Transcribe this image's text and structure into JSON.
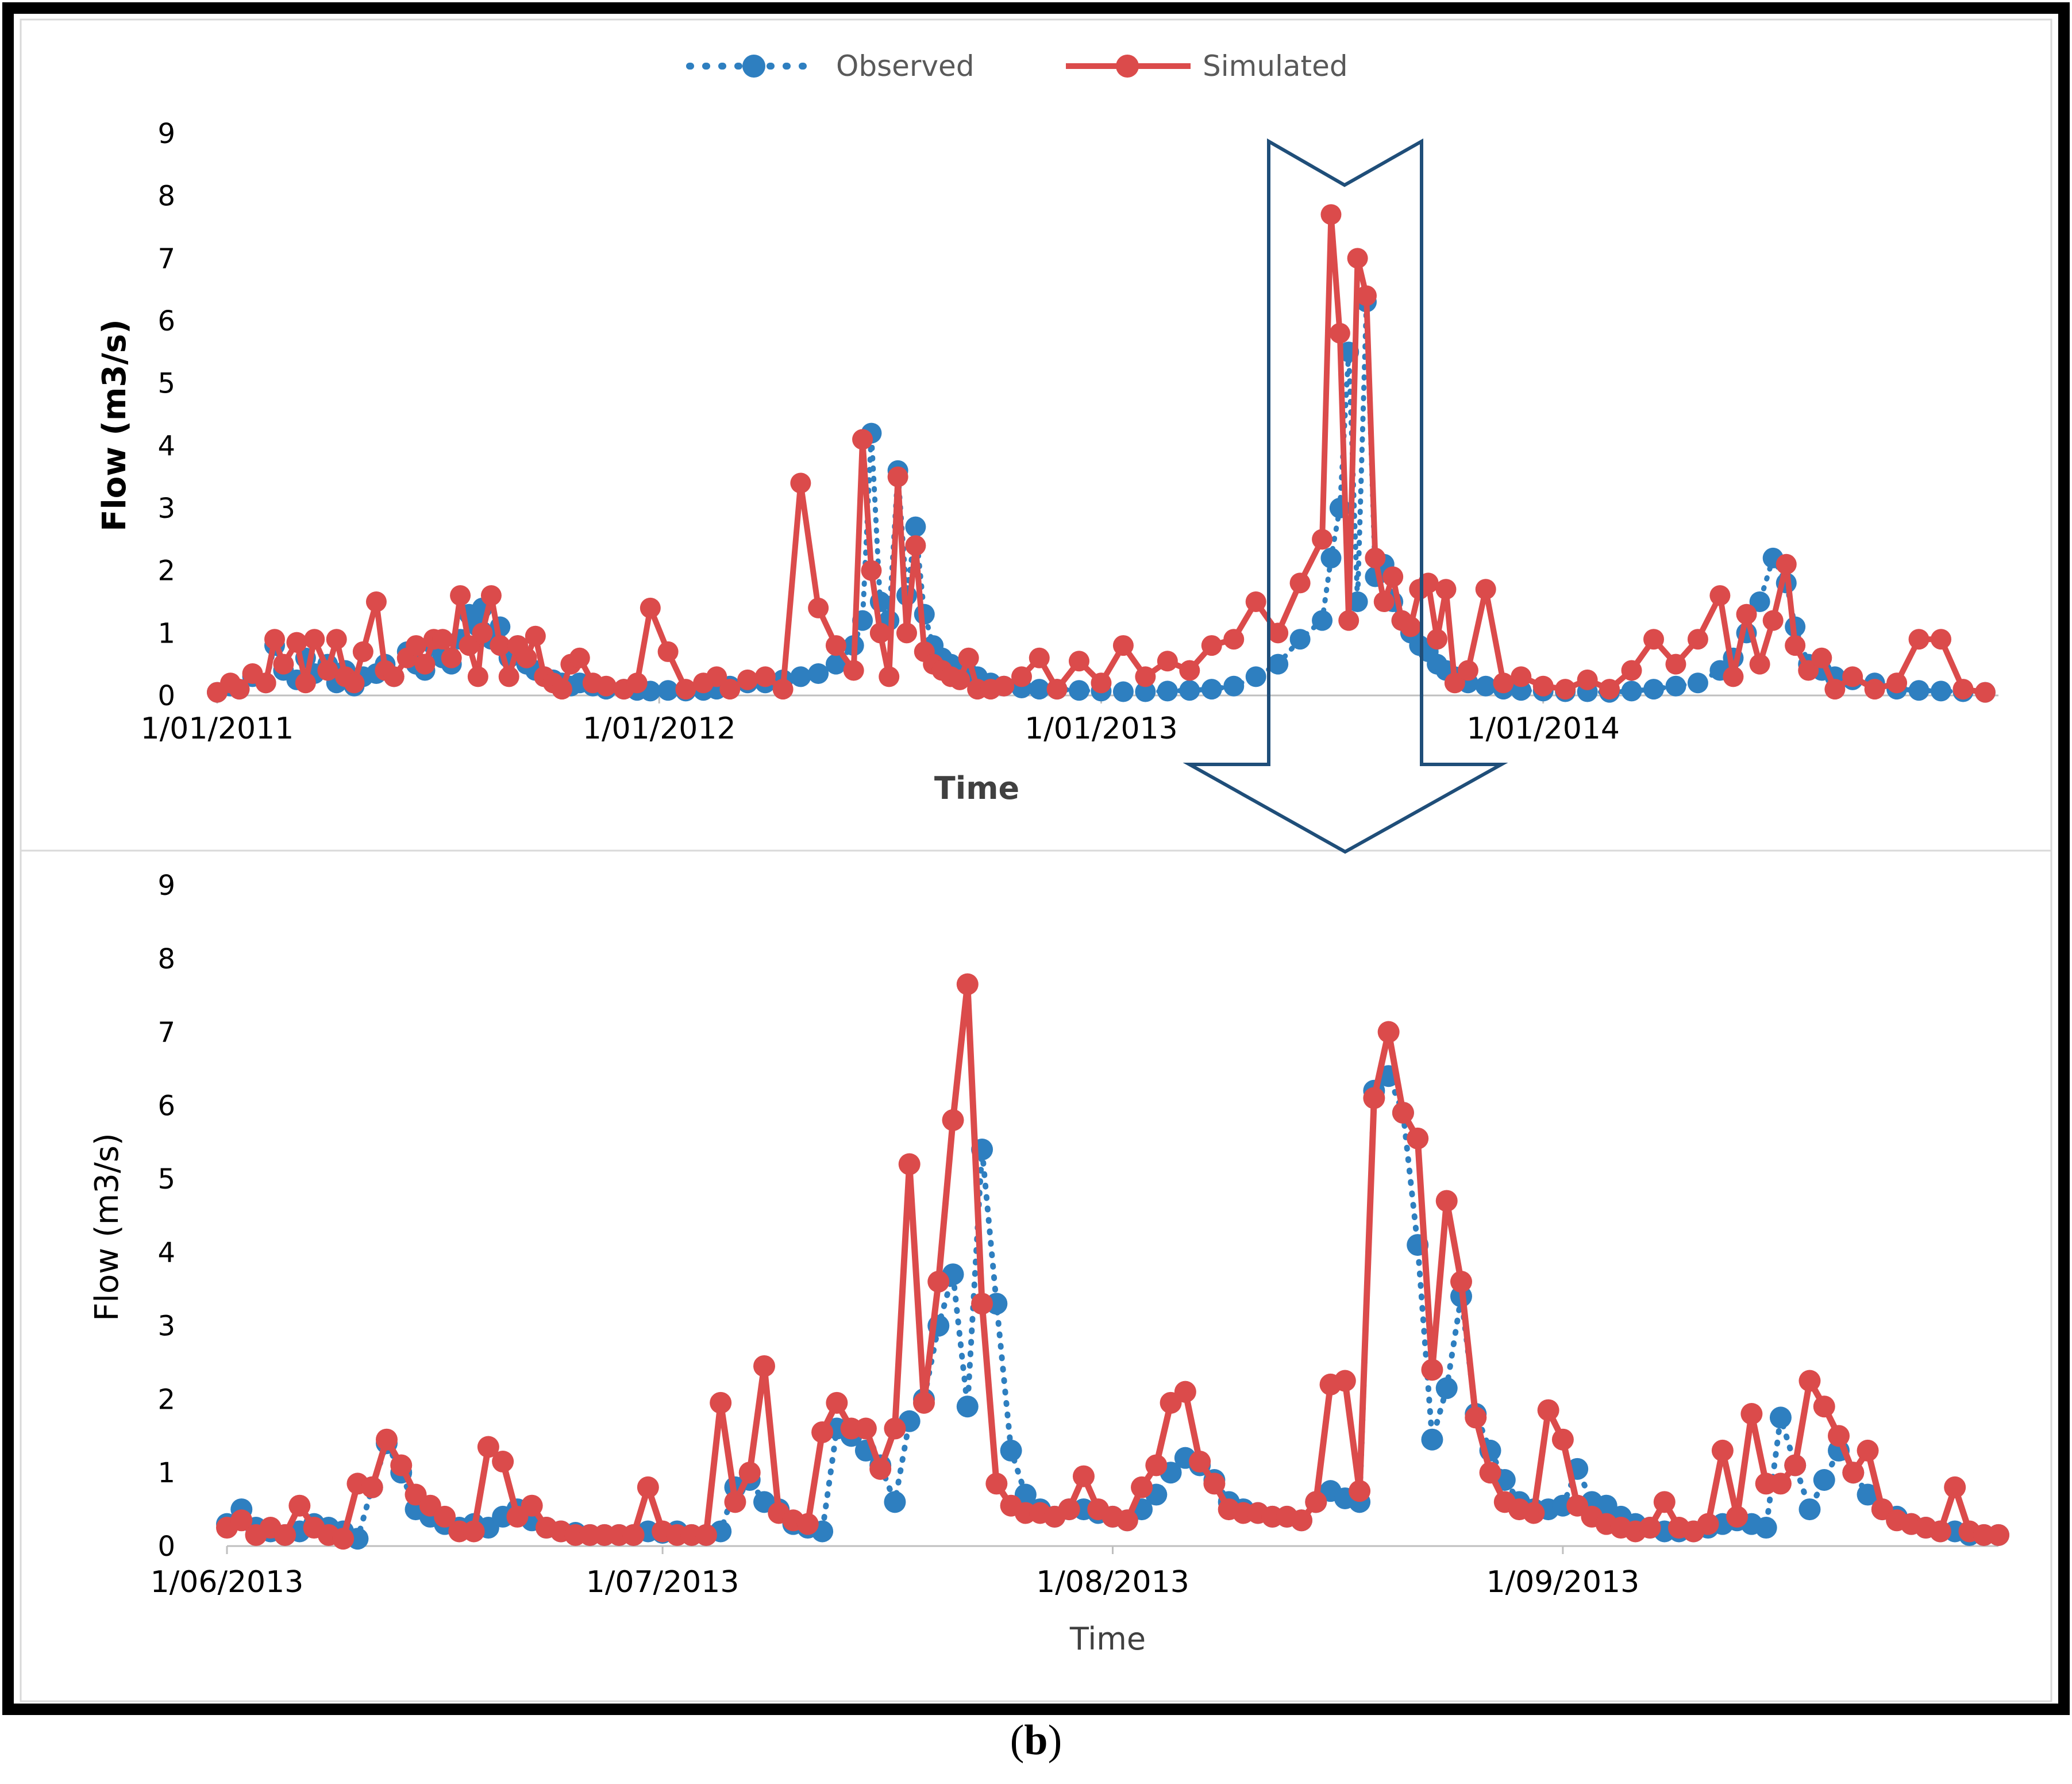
{
  "caption": {
    "open": "(",
    "letter": "b",
    "close": ")"
  },
  "colors": {
    "observed": "#2E7FC0",
    "simulated": "#DB4B4B",
    "arrow": "#1F4E79",
    "frame": "#000000",
    "axis": "#BFBFBF",
    "panelBorder": "#D9D9D9"
  },
  "chart_data": [
    {
      "type": "line",
      "title": "",
      "xlabel": "Time",
      "ylabel": "Flow (m3/s)",
      "ylim": [
        0,
        9
      ],
      "yticks": [
        "0",
        "1",
        "2",
        "3",
        "4",
        "5",
        "6",
        "7",
        "8",
        "9"
      ],
      "xlim": [
        0,
        4.03
      ],
      "xticks": [
        {
          "x": 0,
          "label": "1/01/2011"
        },
        {
          "x": 1,
          "label": "1/01/2012"
        },
        {
          "x": 2,
          "label": "1/01/2013"
        },
        {
          "x": 3,
          "label": "1/01/2014"
        }
      ],
      "legend": [
        {
          "name": "Observed",
          "style": "dotted-markers"
        },
        {
          "name": "Simulated",
          "style": "solid-markers"
        }
      ],
      "legend_position": "top",
      "x_unit": "years since 1/01/2011",
      "series": [
        {
          "name": "Observed",
          "x": [
            0.0,
            0.03,
            0.05,
            0.08,
            0.11,
            0.13,
            0.15,
            0.18,
            0.2,
            0.22,
            0.25,
            0.27,
            0.29,
            0.31,
            0.33,
            0.36,
            0.38,
            0.4,
            0.43,
            0.45,
            0.47,
            0.49,
            0.51,
            0.53,
            0.55,
            0.57,
            0.59,
            0.6,
            0.62,
            0.64,
            0.66,
            0.68,
            0.7,
            0.72,
            0.74,
            0.76,
            0.78,
            0.8,
            0.82,
            0.85,
            0.88,
            0.92,
            0.95,
            0.98,
            1.02,
            1.06,
            1.1,
            1.13,
            1.16,
            1.2,
            1.24,
            1.28,
            1.32,
            1.36,
            1.4,
            1.44,
            1.46,
            1.48,
            1.5,
            1.52,
            1.54,
            1.56,
            1.58,
            1.6,
            1.62,
            1.64,
            1.66,
            1.68,
            1.7,
            1.72,
            1.75,
            1.78,
            1.82,
            1.86,
            1.9,
            1.95,
            2.0,
            2.05,
            2.1,
            2.15,
            2.2,
            2.25,
            2.3,
            2.35,
            2.4,
            2.45,
            2.5,
            2.52,
            2.54,
            2.56,
            2.58,
            2.6,
            2.62,
            2.64,
            2.66,
            2.68,
            2.7,
            2.72,
            2.74,
            2.76,
            2.78,
            2.8,
            2.83,
            2.87,
            2.91,
            2.95,
            3.0,
            3.05,
            3.1,
            3.15,
            3.2,
            3.25,
            3.3,
            3.35,
            3.4,
            3.43,
            3.46,
            3.49,
            3.52,
            3.55,
            3.57,
            3.6,
            3.63,
            3.66,
            3.7,
            3.75,
            3.8,
            3.85,
            3.9,
            3.95,
            4.0
          ],
          "values": [
            0.05,
            0.15,
            0.1,
            0.3,
            0.2,
            0.8,
            0.4,
            0.25,
            0.6,
            0.35,
            0.5,
            0.2,
            0.4,
            0.15,
            0.3,
            0.35,
            0.5,
            0.3,
            0.7,
            0.5,
            0.4,
            0.8,
            0.6,
            0.5,
            0.9,
            1.3,
            1.1,
            1.4,
            0.9,
            1.1,
            0.6,
            0.8,
            0.5,
            0.4,
            0.3,
            0.25,
            0.2,
            0.15,
            0.2,
            0.15,
            0.1,
            0.1,
            0.08,
            0.07,
            0.08,
            0.07,
            0.08,
            0.1,
            0.15,
            0.2,
            0.2,
            0.25,
            0.3,
            0.35,
            0.5,
            0.8,
            1.2,
            4.2,
            1.5,
            1.2,
            3.6,
            1.6,
            2.7,
            1.3,
            0.8,
            0.6,
            0.5,
            0.4,
            0.35,
            0.3,
            0.2,
            0.15,
            0.12,
            0.1,
            0.1,
            0.08,
            0.07,
            0.06,
            0.06,
            0.07,
            0.08,
            0.1,
            0.15,
            0.3,
            0.5,
            0.9,
            1.2,
            2.2,
            3.0,
            5.5,
            1.5,
            6.3,
            1.9,
            2.1,
            1.5,
            1.2,
            1.0,
            0.8,
            0.7,
            0.5,
            0.4,
            0.3,
            0.2,
            0.15,
            0.1,
            0.08,
            0.07,
            0.06,
            0.06,
            0.05,
            0.07,
            0.1,
            0.15,
            0.2,
            0.4,
            0.6,
            1.0,
            1.5,
            2.2,
            1.8,
            1.1,
            0.5,
            0.4,
            0.3,
            0.25,
            0.2,
            0.1,
            0.08,
            0.07,
            0.06,
            0.05
          ]
        },
        {
          "name": "Simulated",
          "x": [
            0.0,
            0.03,
            0.05,
            0.08,
            0.11,
            0.13,
            0.15,
            0.18,
            0.2,
            0.22,
            0.25,
            0.27,
            0.29,
            0.31,
            0.33,
            0.36,
            0.38,
            0.4,
            0.43,
            0.45,
            0.47,
            0.49,
            0.51,
            0.53,
            0.55,
            0.57,
            0.59,
            0.6,
            0.62,
            0.64,
            0.66,
            0.68,
            0.7,
            0.72,
            0.74,
            0.76,
            0.78,
            0.8,
            0.82,
            0.85,
            0.88,
            0.92,
            0.95,
            0.98,
            1.02,
            1.06,
            1.1,
            1.13,
            1.16,
            1.2,
            1.24,
            1.28,
            1.32,
            1.36,
            1.4,
            1.44,
            1.46,
            1.48,
            1.5,
            1.52,
            1.54,
            1.56,
            1.58,
            1.6,
            1.62,
            1.64,
            1.66,
            1.68,
            1.7,
            1.72,
            1.75,
            1.78,
            1.82,
            1.86,
            1.9,
            1.95,
            2.0,
            2.05,
            2.1,
            2.15,
            2.2,
            2.25,
            2.3,
            2.35,
            2.4,
            2.45,
            2.5,
            2.52,
            2.54,
            2.56,
            2.58,
            2.6,
            2.62,
            2.64,
            2.66,
            2.68,
            2.7,
            2.72,
            2.74,
            2.76,
            2.78,
            2.8,
            2.83,
            2.87,
            2.91,
            2.95,
            3.0,
            3.05,
            3.1,
            3.15,
            3.2,
            3.25,
            3.3,
            3.35,
            3.4,
            3.43,
            3.46,
            3.49,
            3.52,
            3.55,
            3.57,
            3.6,
            3.63,
            3.66,
            3.7,
            3.75,
            3.8,
            3.85,
            3.9,
            3.95,
            4.0
          ],
          "values": [
            0.05,
            0.2,
            0.1,
            0.35,
            0.2,
            0.9,
            0.5,
            0.85,
            0.2,
            0.9,
            0.4,
            0.9,
            0.3,
            0.2,
            0.7,
            1.5,
            0.4,
            0.3,
            0.6,
            0.8,
            0.5,
            0.9,
            0.9,
            0.6,
            1.6,
            0.8,
            0.3,
            1.0,
            1.6,
            0.8,
            0.3,
            0.8,
            0.6,
            0.95,
            0.3,
            0.2,
            0.1,
            0.5,
            0.6,
            0.2,
            0.15,
            0.1,
            0.2,
            1.4,
            0.7,
            0.1,
            0.2,
            0.3,
            0.1,
            0.25,
            0.3,
            0.1,
            3.4,
            1.4,
            0.8,
            0.4,
            4.1,
            2.0,
            1.0,
            0.3,
            3.5,
            1.0,
            2.4,
            0.7,
            0.5,
            0.4,
            0.3,
            0.25,
            0.6,
            0.1,
            0.1,
            0.15,
            0.3,
            0.6,
            0.1,
            0.55,
            0.2,
            0.8,
            0.3,
            0.55,
            0.4,
            0.8,
            0.9,
            1.5,
            1.0,
            1.8,
            2.5,
            7.7,
            5.8,
            1.2,
            7.0,
            6.4,
            2.2,
            1.5,
            1.9,
            1.2,
            1.1,
            1.7,
            1.8,
            0.9,
            1.7,
            0.2,
            0.4,
            1.7,
            0.2,
            0.3,
            0.15,
            0.1,
            0.25,
            0.1,
            0.4,
            0.9,
            0.5,
            0.9,
            1.6,
            0.3,
            1.3,
            0.5,
            1.2,
            2.1,
            0.8,
            0.4,
            0.6,
            0.1,
            0.3,
            0.1,
            0.2,
            0.9,
            0.9,
            0.1,
            0.05
          ]
        }
      ]
    },
    {
      "type": "line",
      "title": "",
      "xlabel": "Time",
      "ylabel": "Flow (m3/s)",
      "ylim": [
        0,
        9
      ],
      "yticks": [
        "0",
        "1",
        "2",
        "3",
        "4",
        "5",
        "6",
        "7",
        "8",
        "9"
      ],
      "xlim": [
        0,
        122
      ],
      "xticks": [
        {
          "x": 0,
          "label": "1/06/2013"
        },
        {
          "x": 30,
          "label": "1/07/2013"
        },
        {
          "x": 61,
          "label": "1/08/2013"
        },
        {
          "x": 92,
          "label": "1/09/2013"
        }
      ],
      "x_unit": "days since 1/06/2013",
      "series": [
        {
          "name": "Observed",
          "x": [
            0,
            1,
            2,
            3,
            4,
            5,
            6,
            7,
            8,
            9,
            10,
            11,
            12,
            13,
            14,
            15,
            16,
            17,
            18,
            19,
            20,
            21,
            22,
            23,
            24,
            25,
            26,
            27,
            28,
            29,
            30,
            31,
            32,
            33,
            34,
            35,
            36,
            37,
            38,
            39,
            40,
            41,
            42,
            43,
            44,
            45,
            46,
            47,
            48,
            49,
            50,
            51,
            52,
            53,
            54,
            55,
            56,
            57,
            58,
            59,
            60,
            61,
            62,
            63,
            64,
            65,
            66,
            67,
            68,
            69,
            70,
            71,
            72,
            73,
            74,
            75,
            76,
            77,
            78,
            79,
            80,
            81,
            82,
            83,
            84,
            85,
            86,
            87,
            88,
            89,
            90,
            91,
            92,
            93,
            94,
            95,
            96,
            97,
            98,
            99,
            100,
            101,
            102,
            103,
            104,
            105,
            106,
            107,
            108,
            109,
            110,
            111,
            112,
            113,
            114,
            115,
            116,
            117,
            118,
            119,
            120,
            121,
            122
          ],
          "values": [
            0.3,
            0.5,
            0.25,
            0.2,
            0.15,
            0.2,
            0.3,
            0.25,
            0.2,
            0.1,
            0.8,
            1.4,
            1.0,
            0.5,
            0.4,
            0.3,
            0.25,
            0.3,
            0.25,
            0.4,
            0.5,
            0.35,
            0.25,
            0.2,
            0.18,
            0.15,
            0.15,
            0.15,
            0.15,
            0.2,
            0.18,
            0.2,
            0.15,
            0.15,
            0.2,
            0.8,
            0.9,
            0.6,
            0.5,
            0.3,
            0.25,
            0.2,
            1.6,
            1.5,
            1.3,
            1.1,
            0.6,
            1.7,
            2.0,
            3.0,
            3.7,
            1.9,
            5.4,
            3.3,
            1.3,
            0.7,
            0.5,
            0.4,
            0.5,
            0.5,
            0.45,
            0.4,
            0.35,
            0.5,
            0.7,
            1.0,
            1.2,
            1.1,
            0.9,
            0.6,
            0.5,
            0.45,
            0.4,
            0.4,
            0.35,
            0.6,
            0.75,
            0.65,
            0.6,
            6.2,
            6.4,
            5.9,
            4.1,
            1.45,
            2.15,
            3.4,
            1.8,
            1.3,
            0.9,
            0.6,
            0.5,
            0.5,
            0.55,
            1.05,
            0.6,
            0.55,
            0.4,
            0.3,
            0.25,
            0.2,
            0.2,
            0.2,
            0.25,
            0.3,
            0.35,
            0.3,
            0.25,
            1.75,
            1.1,
            0.5,
            0.9,
            1.3,
            1.0,
            0.7,
            0.5,
            0.4,
            0.3,
            0.25,
            0.2,
            0.2,
            0.15,
            0.15,
            0.15
          ]
        },
        {
          "name": "Simulated",
          "x": [
            0,
            1,
            2,
            3,
            4,
            5,
            6,
            7,
            8,
            9,
            10,
            11,
            12,
            13,
            14,
            15,
            16,
            17,
            18,
            19,
            20,
            21,
            22,
            23,
            24,
            25,
            26,
            27,
            28,
            29,
            30,
            31,
            32,
            33,
            34,
            35,
            36,
            37,
            38,
            39,
            40,
            41,
            42,
            43,
            44,
            45,
            46,
            47,
            48,
            49,
            50,
            51,
            52,
            53,
            54,
            55,
            56,
            57,
            58,
            59,
            60,
            61,
            62,
            63,
            64,
            65,
            66,
            67,
            68,
            69,
            70,
            71,
            72,
            73,
            74,
            75,
            76,
            77,
            78,
            79,
            80,
            81,
            82,
            83,
            84,
            85,
            86,
            87,
            88,
            89,
            90,
            91,
            92,
            93,
            94,
            95,
            96,
            97,
            98,
            99,
            100,
            101,
            102,
            103,
            104,
            105,
            106,
            107,
            108,
            109,
            110,
            111,
            112,
            113,
            114,
            115,
            116,
            117,
            118,
            119,
            120,
            121,
            122
          ],
          "values": [
            0.25,
            0.35,
            0.15,
            0.25,
            0.15,
            0.55,
            0.25,
            0.15,
            0.1,
            0.85,
            0.8,
            1.45,
            1.1,
            0.7,
            0.55,
            0.4,
            0.2,
            0.2,
            1.35,
            1.15,
            0.4,
            0.55,
            0.25,
            0.2,
            0.15,
            0.15,
            0.15,
            0.15,
            0.15,
            0.8,
            0.2,
            0.15,
            0.15,
            0.15,
            1.95,
            0.6,
            1.0,
            2.45,
            0.45,
            0.35,
            0.3,
            1.55,
            1.95,
            1.6,
            1.6,
            1.05,
            1.6,
            5.2,
            1.95,
            3.6,
            5.8,
            7.65,
            3.3,
            0.85,
            0.55,
            0.45,
            0.45,
            0.4,
            0.5,
            0.95,
            0.5,
            0.4,
            0.35,
            0.8,
            1.1,
            1.95,
            2.1,
            1.15,
            0.85,
            0.5,
            0.45,
            0.45,
            0.4,
            0.4,
            0.35,
            0.6,
            2.2,
            2.25,
            0.75,
            6.1,
            7.0,
            5.9,
            5.55,
            2.4,
            4.7,
            3.6,
            1.75,
            1.0,
            0.6,
            0.5,
            0.45,
            1.85,
            1.45,
            0.55,
            0.4,
            0.3,
            0.25,
            0.2,
            0.25,
            0.6,
            0.25,
            0.2,
            0.3,
            1.3,
            0.4,
            1.8,
            0.85,
            0.85,
            1.1,
            2.25,
            1.9,
            1.5,
            1.0,
            1.3,
            0.5,
            0.35,
            0.3,
            0.25,
            0.2,
            0.8,
            0.2,
            0.15,
            0.15
          ]
        }
      ]
    }
  ]
}
